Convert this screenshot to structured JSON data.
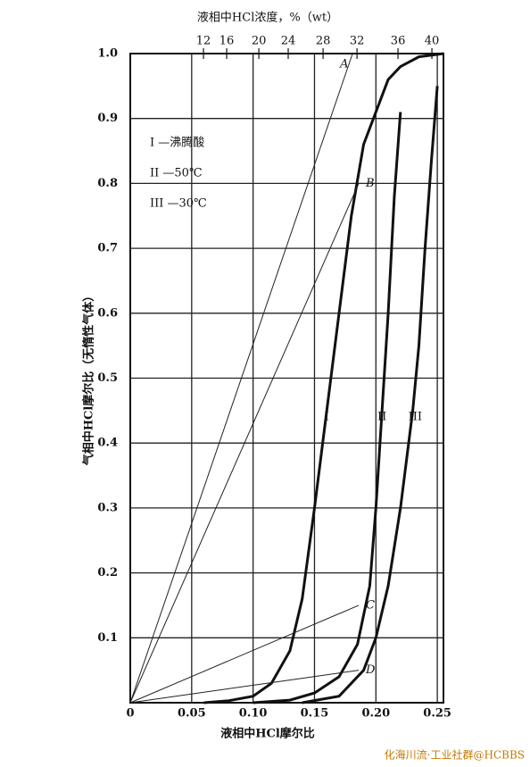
{
  "chart_data": {
    "type": "line",
    "title": "液相中HCl浓度，%（wt）",
    "x_label": "液相中HCl摩尔比",
    "y_label": "气相中HCl摩尔比（无惰性气体）",
    "xlim": [
      0,
      0.255
    ],
    "ylim": [
      0,
      1
    ],
    "xticks": [
      0,
      0.05,
      {
        "value": 0.1,
        "label": "0.10"
      },
      0.15,
      {
        "value": 0.2,
        "label": "0.20"
      },
      0.25
    ],
    "yticks": [
      0.1,
      0.2,
      0.3,
      0.4,
      0.5,
      0.6,
      0.7,
      0.8,
      0.9,
      {
        "value": 1,
        "label": "1.0"
      }
    ],
    "x2ticks": [
      {
        "value": 0.0596,
        "label": "12"
      },
      {
        "value": 0.0785,
        "label": "16"
      },
      {
        "value": 0.1047,
        "label": "20"
      },
      {
        "value": 0.1286,
        "label": "24"
      },
      {
        "value": 0.157,
        "label": "28"
      },
      {
        "value": 0.1846,
        "label": "32"
      },
      {
        "value": 0.218,
        "label": "36"
      },
      {
        "value": 0.2456,
        "label": "40"
      }
    ],
    "grid": true,
    "legend": [
      "I —沸腾酸",
      "II —50℃",
      "III —30℃"
    ],
    "series": [
      {
        "name": "I",
        "color": "#111",
        "x": [
          0.06,
          0.08,
          0.1,
          0.115,
          0.13,
          0.14,
          0.15,
          0.16,
          0.17,
          0.18,
          0.19,
          0.2,
          0.21,
          0.22,
          0.235,
          0.255
        ],
        "values": [
          0,
          0.003,
          0.01,
          0.03,
          0.08,
          0.16,
          0.3,
          0.45,
          0.6,
          0.75,
          0.86,
          0.91,
          0.96,
          0.98,
          0.995,
          1
        ]
      },
      {
        "name": "II",
        "color": "#111",
        "x": [
          0.1,
          0.13,
          0.15,
          0.17,
          0.185,
          0.195,
          0.2,
          0.205,
          0.21,
          0.215,
          0.22
        ],
        "values": [
          0,
          0.004,
          0.015,
          0.04,
          0.09,
          0.18,
          0.3,
          0.45,
          0.6,
          0.78,
          0.91
        ]
      },
      {
        "name": "III",
        "color": "#111",
        "x": [
          0.14,
          0.17,
          0.19,
          0.2,
          0.21,
          0.22,
          0.23,
          0.235,
          0.24,
          0.245,
          0.25
        ],
        "values": [
          0,
          0.01,
          0.05,
          0.1,
          0.18,
          0.3,
          0.45,
          0.55,
          0.7,
          0.83,
          0.95
        ]
      }
    ],
    "lines": [
      {
        "name": "A",
        "x": [
          0,
          0.181
        ],
        "values": [
          0,
          1
        ]
      },
      {
        "name": "B",
        "x": [
          0,
          0.186
        ],
        "values": [
          0,
          0.8
        ]
      },
      {
        "name": "C",
        "x": [
          0,
          0.186
        ],
        "values": [
          0,
          0.15
        ]
      },
      {
        "name": "D",
        "x": [
          0,
          0.186
        ],
        "values": [
          0,
          0.05
        ]
      }
    ],
    "watermark": "化海川流·工业社群@HCBBS"
  }
}
